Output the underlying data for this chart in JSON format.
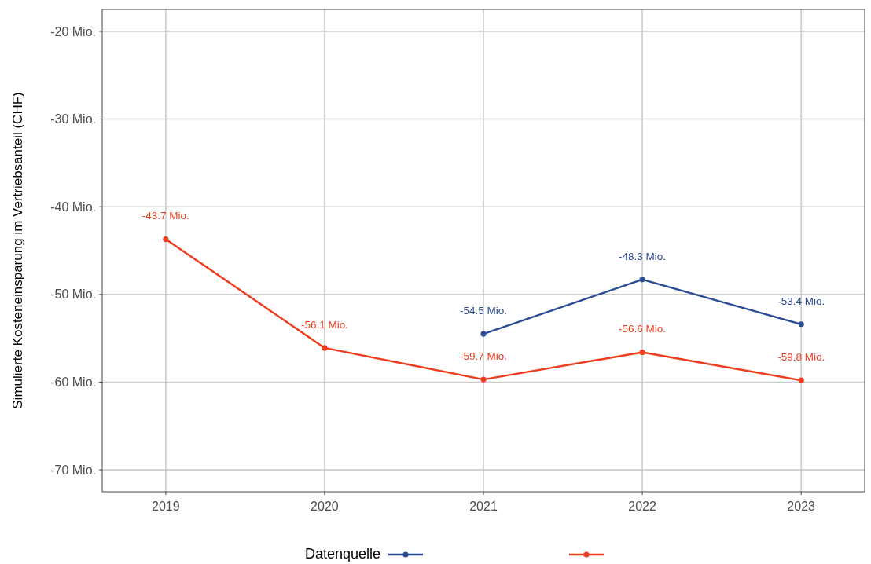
{
  "chart_data": {
    "type": "line",
    "ylabel": "Simulierte Kosteneinsparung im Vertriebsanteil (CHF)",
    "legend_title": "Datenquelle",
    "categories": [
      "2019",
      "2020",
      "2021",
      "2022",
      "2023"
    ],
    "series": [
      {
        "color": "#2a4d96",
        "values": [
          null,
          null,
          -54.5,
          -48.3,
          -53.4
        ],
        "value_labels": [
          null,
          null,
          "-54.5 Mio.",
          "-48.3 Mio.",
          "-53.4 Mio."
        ]
      },
      {
        "color": "#f03c1e",
        "values": [
          -43.7,
          -56.1,
          -59.7,
          -56.6,
          -59.8
        ],
        "value_labels": [
          "-43.7 Mio.",
          "-56.1 Mio.",
          "-59.7 Mio.",
          "-56.6 Mio.",
          "-59.8 Mio."
        ]
      }
    ],
    "ylim": [
      -72.5,
      -17.5
    ],
    "yticks": [
      {
        "value": -70,
        "label": "-70 Mio."
      },
      {
        "value": -60,
        "label": "-60 Mio."
      },
      {
        "value": -50,
        "label": "-50 Mio."
      },
      {
        "value": -40,
        "label": "-40 Mio."
      },
      {
        "value": -30,
        "label": "-30 Mio."
      },
      {
        "value": -20,
        "label": "-20 Mio."
      }
    ],
    "grid": true,
    "marker": "circle",
    "line_style": "solid"
  }
}
